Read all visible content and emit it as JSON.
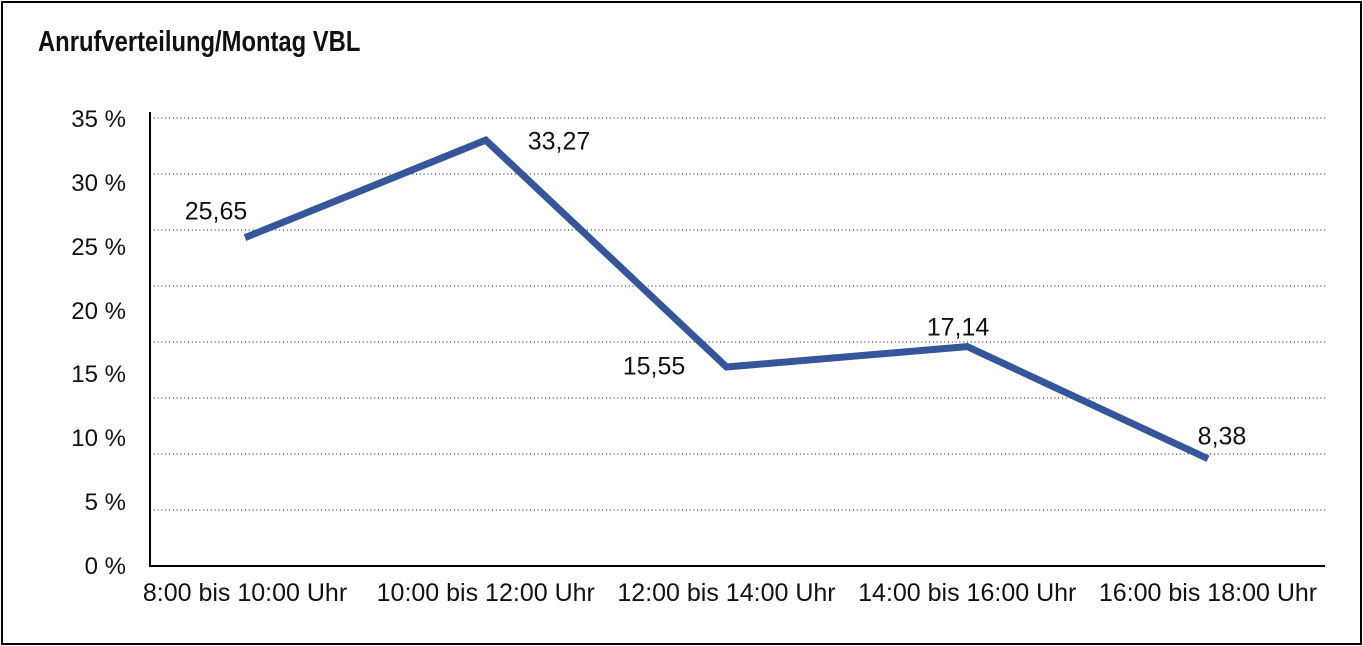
{
  "title": "Anrufverteilung/Montag VBL",
  "chart_data": {
    "type": "line",
    "title": "Anrufverteilung/Montag VBL",
    "categories": [
      "8:00 bis 10:00 Uhr",
      "10:00 bis 12:00 Uhr",
      "12:00 bis 14:00 Uhr",
      "14:00 bis 16:00 Uhr",
      "16:00 bis 18:00 Uhr"
    ],
    "series": [
      {
        "name": "Montag VBL",
        "values": [
          25.65,
          33.27,
          15.55,
          17.14,
          8.38
        ]
      }
    ],
    "value_labels": [
      "25,65",
      "33,27",
      "15,55",
      "17,14",
      "8,38"
    ],
    "y_axis": {
      "min": 0,
      "max": 35,
      "tick_step": 5,
      "unit": "%",
      "tick_labels": [
        "0 %",
        "5 %",
        "10 %",
        "15 %",
        "20 %",
        "25 %",
        "30 %",
        "35 %"
      ]
    },
    "grid": {
      "horizontal": true,
      "style": "dotted",
      "intervals": 8
    },
    "legend": "none",
    "colors": {
      "line": "#36569C",
      "axis": "#000000",
      "grid_dots": "#3f3f3f",
      "text": "#111111",
      "background": "#ffffff",
      "border": "#000000"
    }
  }
}
